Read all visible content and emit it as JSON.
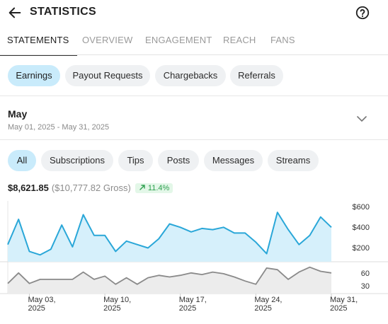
{
  "header": {
    "title": "STATISTICS",
    "back_icon": "arrow-left-icon",
    "help_icon": "help-circle-icon"
  },
  "tabs": [
    {
      "label": "STATEMENTS",
      "active": true
    },
    {
      "label": "OVERVIEW",
      "active": false
    },
    {
      "label": "ENGAGEMENT",
      "active": false
    },
    {
      "label": "REACH",
      "active": false
    },
    {
      "label": "FANS",
      "active": false
    }
  ],
  "statement_types": [
    {
      "label": "Earnings",
      "active": true
    },
    {
      "label": "Payout Requests",
      "active": false
    },
    {
      "label": "Chargebacks",
      "active": false
    },
    {
      "label": "Referrals",
      "active": false
    }
  ],
  "period": {
    "month": "May",
    "range": "May 01, 2025 - May 31, 2025"
  },
  "filters": [
    {
      "label": "All",
      "active": true
    },
    {
      "label": "Subscriptions",
      "active": false
    },
    {
      "label": "Tips",
      "active": false
    },
    {
      "label": "Posts",
      "active": false
    },
    {
      "label": "Messages",
      "active": false
    },
    {
      "label": "Streams",
      "active": false
    }
  ],
  "summary": {
    "net": "$8,621.85",
    "gross": "($10,777.82 Gross)",
    "growth": "11.4%"
  },
  "colors": {
    "accent": "#2aa7d8",
    "area_fill": "#d6f0fb",
    "chip_active": "#c9ebfb",
    "chip": "#eff1f3",
    "growth_text": "#2e9f4f",
    "growth_bg": "#e3f7e8",
    "secondary_line": "#8a8a8a"
  },
  "chart_data": [
    {
      "type": "area",
      "x": [
        "May 01",
        "May 02",
        "May 03",
        "May 04",
        "May 05",
        "May 06",
        "May 07",
        "May 08",
        "May 09",
        "May 10",
        "May 11",
        "May 12",
        "May 13",
        "May 14",
        "May 15",
        "May 16",
        "May 17",
        "May 18",
        "May 19",
        "May 20",
        "May 21",
        "May 22",
        "May 23",
        "May 24",
        "May 25",
        "May 26",
        "May 27",
        "May 28",
        "May 29",
        "May 30",
        "May 31"
      ],
      "series": [
        {
          "values": [
            250,
            470,
            190,
            160,
            210,
            420,
            230,
            510,
            330,
            330,
            190,
            280,
            250,
            220,
            300,
            430,
            400,
            360,
            390,
            380,
            400,
            350,
            350,
            270,
            170,
            530,
            380,
            250,
            330,
            490,
            400
          ]
        }
      ],
      "y_ticks": [
        "$600",
        "$400",
        "$200"
      ],
      "ylim": [
        100,
        630
      ]
    },
    {
      "type": "area",
      "x": [
        "May 01",
        "May 02",
        "May 03",
        "May 04",
        "May 05",
        "May 06",
        "May 07",
        "May 08",
        "May 09",
        "May 10",
        "May 11",
        "May 12",
        "May 13",
        "May 14",
        "May 15",
        "May 16",
        "May 17",
        "May 18",
        "May 19",
        "May 20",
        "May 21",
        "May 22",
        "May 23",
        "May 24",
        "May 25",
        "May 26",
        "May 27",
        "May 28",
        "May 29",
        "May 30",
        "May 31"
      ],
      "series": [
        {
          "values": [
            30,
            56,
            30,
            40,
            40,
            40,
            40,
            58,
            40,
            48,
            28,
            44,
            28,
            44,
            50,
            46,
            50,
            56,
            52,
            58,
            54,
            46,
            36,
            28,
            68,
            64,
            40,
            58,
            70,
            60,
            56
          ]
        }
      ],
      "y_ticks": [
        "60",
        "30"
      ],
      "ylim": [
        5,
        80
      ]
    }
  ],
  "x_ticks": [
    {
      "line1": "May 03,",
      "line2": "2025",
      "day": 3
    },
    {
      "line1": "May 10,",
      "line2": "2025",
      "day": 10
    },
    {
      "line1": "May 17,",
      "line2": "2025",
      "day": 17
    },
    {
      "line1": "May 24,",
      "line2": "2025",
      "day": 24
    },
    {
      "line1": "May 31,",
      "line2": "2025",
      "day": 31
    }
  ]
}
